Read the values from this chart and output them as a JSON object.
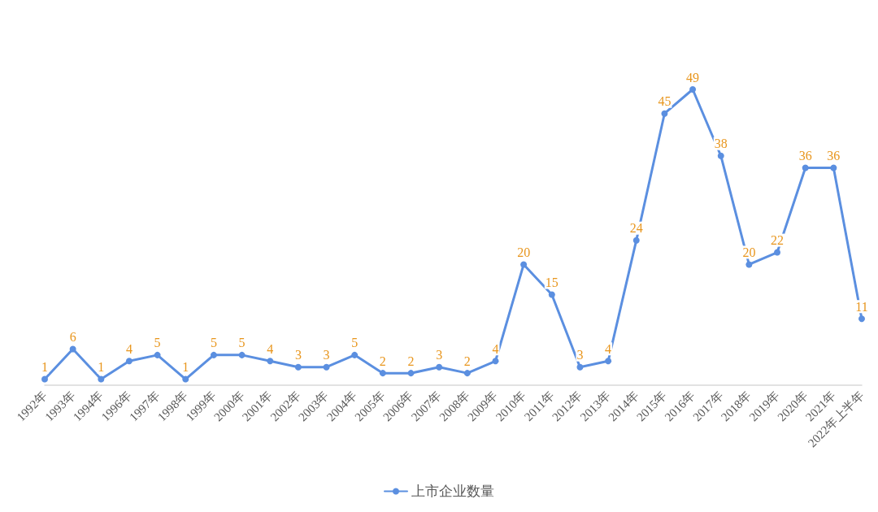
{
  "chart_data": {
    "type": "line",
    "categories": [
      "1992年",
      "1993年",
      "1994年",
      "1996年",
      "1997年",
      "1998年",
      "1999年",
      "2000年",
      "2001年",
      "2002年",
      "2003年",
      "2004年",
      "2005年",
      "2006年",
      "2007年",
      "2008年",
      "2009年",
      "2010年",
      "2011年",
      "2012年",
      "2013年",
      "2014年",
      "2015年",
      "2016年",
      "2017年",
      "2018年",
      "2019年",
      "2020年",
      "2021年",
      "2022年上半年"
    ],
    "series": [
      {
        "name": "上市企业数量",
        "color": "#5b8fe0",
        "values": [
          1,
          6,
          1,
          4,
          5,
          1,
          5,
          5,
          4,
          3,
          3,
          5,
          2,
          2,
          3,
          2,
          4,
          20,
          15,
          3,
          4,
          24,
          45,
          49,
          38,
          20,
          22,
          36,
          36,
          11
        ]
      }
    ],
    "data_labels": true,
    "legend": "bottom",
    "marker": "circle",
    "line_style": "solid",
    "tick_labels": "x"
  }
}
